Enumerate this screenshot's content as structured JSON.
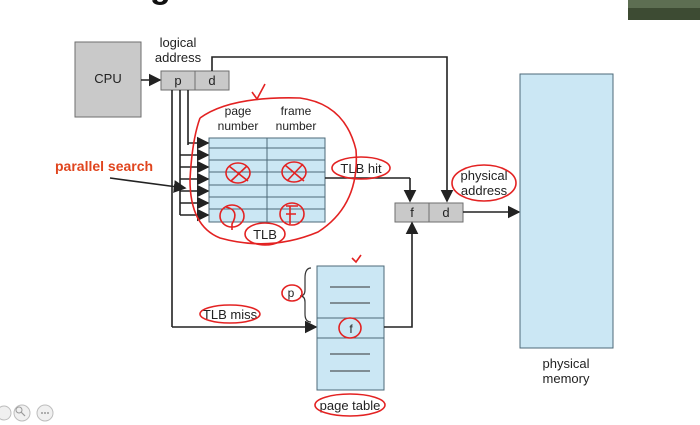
{
  "title_fragment": "gi",
  "labels": {
    "cpu": "CPU",
    "logical_address": [
      "logical",
      "address"
    ],
    "p": "p",
    "d": "d",
    "page_number": [
      "page",
      "number"
    ],
    "frame_number": [
      "frame",
      "number"
    ],
    "tlb": "TLB",
    "tlb_hit": "TLB hit",
    "tlb_miss": "TLB miss",
    "parallel_search": "parallel search",
    "f": "f",
    "physical_address": [
      "physical",
      "address"
    ],
    "physical_memory": [
      "physical",
      "memory"
    ],
    "page_table": "page table",
    "page_table_p": "p",
    "page_table_f": "f"
  },
  "colors": {
    "annotation_ink": "#e32222",
    "tlb_fill": "#cbe7f4",
    "cpu_fill": "#c9c9c9"
  },
  "controls": [
    "zoom-in-icon",
    "zoom-icon",
    "more-icon"
  ]
}
